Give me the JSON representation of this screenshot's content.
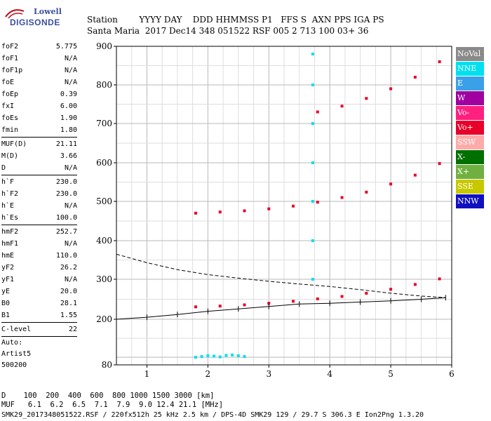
{
  "logo": {
    "line1": "Lowell",
    "line2": "DIGISONDE"
  },
  "header": {
    "row1": "Station        YYYY DAY    DDD HHMMSS P1   FFS S  AXN PPS IGA PS",
    "row2": "Santa Maria  2017 Dec14 348 051522 RSF 005 2 713 100 03+ 36"
  },
  "params": [
    {
      "name": "foF2",
      "value": "5.775"
    },
    {
      "name": "foF1",
      "value": "N/A"
    },
    {
      "name": "foF1p",
      "value": "N/A"
    },
    {
      "name": "foE",
      "value": "N/A"
    },
    {
      "name": "foEp",
      "value": "0.39"
    },
    {
      "name": "fxI",
      "value": "6.00"
    },
    {
      "name": "foEs",
      "value": "1.90"
    },
    {
      "name": "fmin",
      "value": "1.80"
    },
    {
      "sep": true
    },
    {
      "name": "MUF(D)",
      "value": "21.11"
    },
    {
      "name": "M(D)",
      "value": "3.66"
    },
    {
      "name": "D",
      "value": "N/A"
    },
    {
      "sep": true
    },
    {
      "name": "h`F",
      "value": "230.0"
    },
    {
      "name": "h`F2",
      "value": "230.0"
    },
    {
      "name": "h`E",
      "value": "N/A"
    },
    {
      "name": "h`Es",
      "value": "100.0"
    },
    {
      "sep": true
    },
    {
      "name": "hmF2",
      "value": "252.7"
    },
    {
      "name": "hmF1",
      "value": "N/A"
    },
    {
      "name": "hmE",
      "value": "110.0"
    },
    {
      "name": "yF2",
      "value": "26.2"
    },
    {
      "name": "yF1",
      "value": "N/A"
    },
    {
      "name": "yE",
      "value": "20.0"
    },
    {
      "name": "B0",
      "value": "28.1"
    },
    {
      "name": "B1",
      "value": "1.55"
    },
    {
      "sep": true
    },
    {
      "name": "C-level",
      "value": "22"
    },
    {
      "sep": true
    },
    {
      "text": "Auto:"
    },
    {
      "text": "Artist5"
    },
    {
      "text": "500200"
    }
  ],
  "legend": [
    {
      "label": "NoVal",
      "color": "#8a8a8a"
    },
    {
      "label": "NNE",
      "color": "#00e0f0"
    },
    {
      "label": "E",
      "color": "#3aa0e8"
    },
    {
      "label": "W",
      "color": "#a000a0"
    },
    {
      "label": "Vo-",
      "color": "#ff2080"
    },
    {
      "label": "Vo+",
      "color": "#e8002a"
    },
    {
      "label": "SSW",
      "color": "#ffaaaa"
    },
    {
      "label": "X-",
      "color": "#007000"
    },
    {
      "label": "X+",
      "color": "#70b040"
    },
    {
      "label": "SSE",
      "color": "#c8c800"
    },
    {
      "label": "NNW",
      "color": "#1010c0"
    }
  ],
  "footer": {
    "row1": "D    100  200  400  600  800 1000 1500 3000 [km]",
    "row2": "MUF   6.1  6.2  6.5  7.1  7.9  9.0 12.4 21.1 [MHz]",
    "row3": "SMK29_2017348051522.RSF / 220fx512h 25 kHz 2.5 km / DPS-4D SMK29 129 / 29.7 S 306.3 E Ion2Png 1.3.20"
  },
  "chart_data": {
    "type": "scatter",
    "xlim": [
      0.5,
      6.0
    ],
    "ylim": [
      80,
      900
    ],
    "xticks": [
      "1",
      "2",
      "3",
      "4",
      "5",
      "6"
    ],
    "yticks": [
      "80",
      "200",
      "300",
      "400",
      "500",
      "600",
      "700",
      "800",
      "900"
    ],
    "grid": true,
    "series": [
      {
        "name": "Vo+",
        "x": [
          1.8,
          2.2,
          2.6,
          3.0,
          3.4,
          3.8,
          4.2,
          4.6,
          5.0,
          5.4,
          5.8
        ],
        "y": [
          231,
          233,
          236,
          240,
          245,
          251,
          257,
          265,
          275,
          287,
          301
        ]
      },
      {
        "name": "Vo+",
        "x": [
          1.8,
          2.2,
          2.6,
          3.0,
          3.4,
          3.8,
          4.2,
          4.6,
          5.0,
          5.4,
          5.8
        ],
        "y": [
          470,
          473,
          476,
          481,
          488,
          498,
          510,
          524,
          545,
          568,
          598
        ]
      },
      {
        "name": "Vo+",
        "x": [
          3.8,
          4.2,
          4.6,
          5.0,
          5.4,
          5.8
        ],
        "y": [
          730,
          745,
          765,
          790,
          820,
          860
        ]
      },
      {
        "name": "NNE",
        "x": [
          1.8,
          1.9,
          2.0,
          2.1,
          2.2,
          2.3,
          2.4,
          2.5,
          2.6
        ],
        "y": [
          100,
          102,
          104,
          103,
          101,
          105,
          106,
          104,
          102
        ]
      },
      {
        "name": "NNE",
        "x": [
          3.72,
          3.72,
          3.72,
          3.72,
          3.72,
          3.72,
          3.72
        ],
        "y": [
          300,
          400,
          500,
          600,
          700,
          800,
          880
        ]
      }
    ],
    "lines": [
      {
        "name": "profile",
        "x": [
          0.5,
          1.0,
          1.5,
          2.0,
          2.5,
          3.0,
          3.5,
          4.0,
          4.5,
          5.0,
          5.5,
          5.9
        ],
        "y": [
          200,
          205,
          212,
          220,
          226,
          232,
          238,
          240,
          243,
          246,
          250,
          254
        ]
      },
      {
        "name": "dashed",
        "x": [
          0.5,
          1.0,
          1.5,
          2.0,
          2.5,
          3.0,
          3.5,
          4.0,
          4.5,
          5.0,
          5.5,
          5.9
        ],
        "y": [
          365,
          343,
          325,
          312,
          303,
          295,
          288,
          282,
          274,
          265,
          258,
          254
        ]
      }
    ]
  }
}
